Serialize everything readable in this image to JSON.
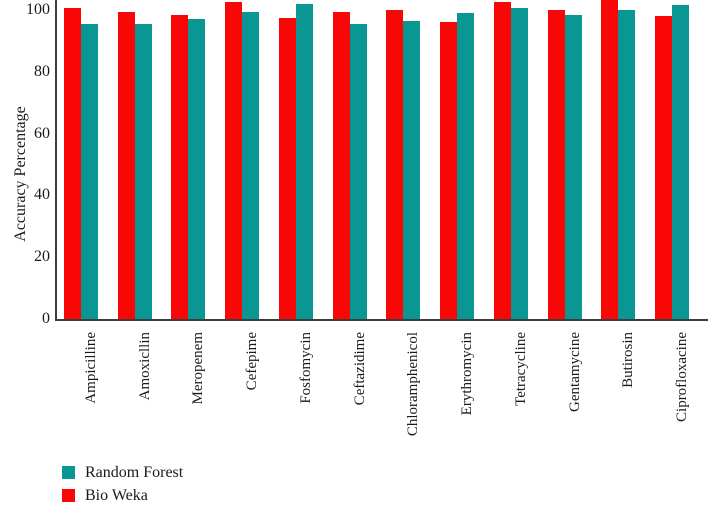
{
  "chart_data": {
    "type": "bar",
    "title": "",
    "ylabel": "Accuracy Percentage",
    "xlabel": "",
    "ylim": [
      0,
      103.5
    ],
    "yticks": [
      0,
      20,
      40,
      60,
      80,
      100
    ],
    "grid": false,
    "legend_position": "bottom-left",
    "categories": [
      "Ampicilline",
      "Amoxicllin",
      "Meropenem",
      "Cefepime",
      "Fosfomycin",
      "Ceftazidime",
      "Chloramphenicol",
      "Erythromycin",
      "Tetracycline",
      "Gentamycine",
      "Butirosin",
      "Ciprofloxacine"
    ],
    "series": [
      {
        "name": "Bio Weka",
        "color": "#f90606",
        "values": [
          100.5,
          99.5,
          98.5,
          102.5,
          97.5,
          99.5,
          100,
          96,
          102.5,
          100,
          103.5,
          98
        ]
      },
      {
        "name": "Random Forest",
        "color": "#0a9692",
        "values": [
          95.5,
          95.5,
          97,
          99.5,
          102,
          95.5,
          96.5,
          99,
          100.5,
          98.5,
          100,
          101.5
        ]
      }
    ],
    "legend": [
      {
        "label": "Random Forest",
        "color": "#0a9692"
      },
      {
        "label": "Bio Weka",
        "color": "#f90606"
      }
    ],
    "colors": {
      "bio_weka": "#f90606",
      "random_forest": "#0a9692",
      "axis": "#3d3d3d",
      "text": "#1a1a1a"
    }
  }
}
